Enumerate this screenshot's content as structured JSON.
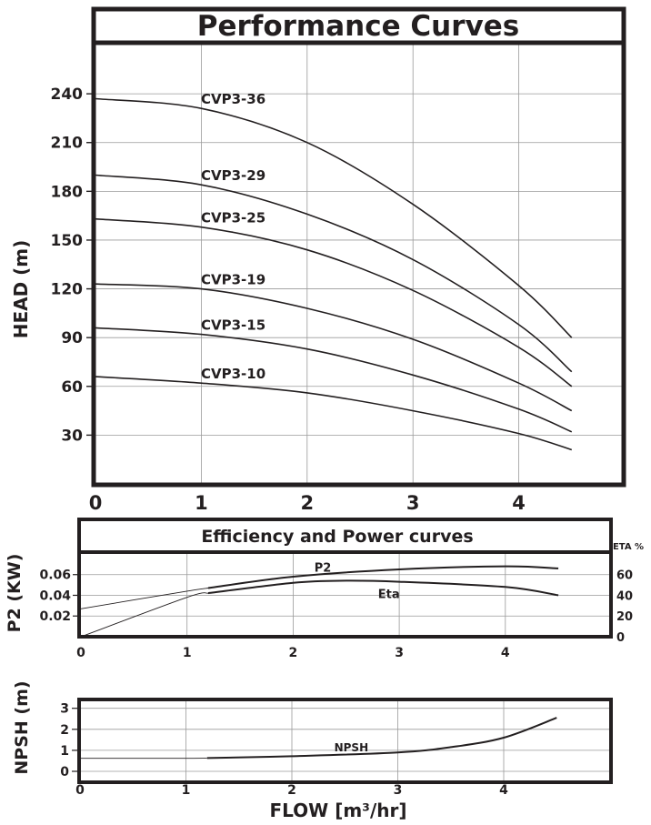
{
  "colors": {
    "ink": "#231f20",
    "grid": "#9a9a9a",
    "background": "#ffffff"
  },
  "chart_data": [
    {
      "type": "line",
      "title": "Performance Curves",
      "xlabel": "",
      "ylabel": "HEAD (m)",
      "xlim": [
        0,
        5
      ],
      "ylim": [
        0,
        260
      ],
      "xticks": [
        "0",
        "1",
        "2",
        "3",
        "4"
      ],
      "yticks": [
        "30",
        "60",
        "90",
        "120",
        "150",
        "180",
        "210",
        "240"
      ],
      "grid": true,
      "series": [
        {
          "name": "CVP3-36",
          "points": [
            [
              0,
              237
            ],
            [
              1,
              231
            ],
            [
              2,
              210
            ],
            [
              3,
              172
            ],
            [
              4,
              122
            ],
            [
              4.5,
              90
            ]
          ]
        },
        {
          "name": "CVP3-29",
          "points": [
            [
              0,
              190
            ],
            [
              1,
              184
            ],
            [
              2,
              166
            ],
            [
              3,
              138
            ],
            [
              4,
              98
            ],
            [
              4.5,
              69
            ]
          ]
        },
        {
          "name": "CVP3-25",
          "points": [
            [
              0,
              163
            ],
            [
              1,
              158
            ],
            [
              2,
              144
            ],
            [
              3,
              119
            ],
            [
              4,
              84
            ],
            [
              4.5,
              60
            ]
          ]
        },
        {
          "name": "CVP3-19",
          "points": [
            [
              0,
              123
            ],
            [
              1,
              120
            ],
            [
              2,
              108
            ],
            [
              3,
              89
            ],
            [
              4,
              62
            ],
            [
              4.5,
              45
            ]
          ]
        },
        {
          "name": "CVP3-15",
          "points": [
            [
              0,
              96
            ],
            [
              1,
              92
            ],
            [
              2,
              83
            ],
            [
              3,
              67
            ],
            [
              4,
              46
            ],
            [
              4.5,
              32
            ]
          ]
        },
        {
          "name": "CVP3-10",
          "points": [
            [
              0,
              66
            ],
            [
              1,
              62
            ],
            [
              2,
              56
            ],
            [
              3,
              45
            ],
            [
              4,
              31
            ],
            [
              4.5,
              21
            ]
          ]
        }
      ]
    },
    {
      "type": "line",
      "title": "Efficiency and Power curves",
      "xlabel": "",
      "ylabel": "P2 (KW)",
      "ylabel_right": "ETA %",
      "xlim": [
        0,
        5
      ],
      "ylim": [
        0,
        0.08
      ],
      "ylim_right": [
        0,
        80
      ],
      "xticks": [
        "0",
        "1",
        "2",
        "3",
        "4"
      ],
      "yticks": [
        "0.02",
        "0.04",
        "0.06"
      ],
      "yticks_right": [
        "0",
        "20",
        "40",
        "60"
      ],
      "grid": true,
      "series": [
        {
          "name": "P2",
          "axis": "left",
          "points": [
            [
              0,
              0.027
            ],
            [
              1,
              0.044
            ],
            [
              1.2,
              0.047
            ],
            [
              2,
              0.058
            ],
            [
              3,
              0.065
            ],
            [
              4,
              0.068
            ],
            [
              4.5,
              0.066
            ]
          ]
        },
        {
          "name": "Eta",
          "axis": "right",
          "points": [
            [
              0,
              0
            ],
            [
              1,
              38
            ],
            [
              1.2,
              42
            ],
            [
              2,
              52
            ],
            [
              2.5,
              54
            ],
            [
              3,
              53
            ],
            [
              4,
              48
            ],
            [
              4.5,
              40
            ]
          ]
        }
      ]
    },
    {
      "type": "line",
      "title": "",
      "xlabel": "FLOW [m³/hr]",
      "ylabel": "NPSH (m)",
      "xlim": [
        0,
        5
      ],
      "ylim": [
        -0.5,
        3.5
      ],
      "xticks": [
        "0",
        "1",
        "2",
        "3",
        "4"
      ],
      "yticks": [
        "0",
        "1",
        "2",
        "3"
      ],
      "grid": true,
      "series": [
        {
          "name": "NPSH",
          "points": [
            [
              0,
              0.62
            ],
            [
              1,
              0.62
            ],
            [
              1.2,
              0.63
            ],
            [
              2,
              0.72
            ],
            [
              3,
              0.9
            ],
            [
              3.5,
              1.15
            ],
            [
              4,
              1.6
            ],
            [
              4.5,
              2.55
            ]
          ]
        }
      ]
    }
  ]
}
